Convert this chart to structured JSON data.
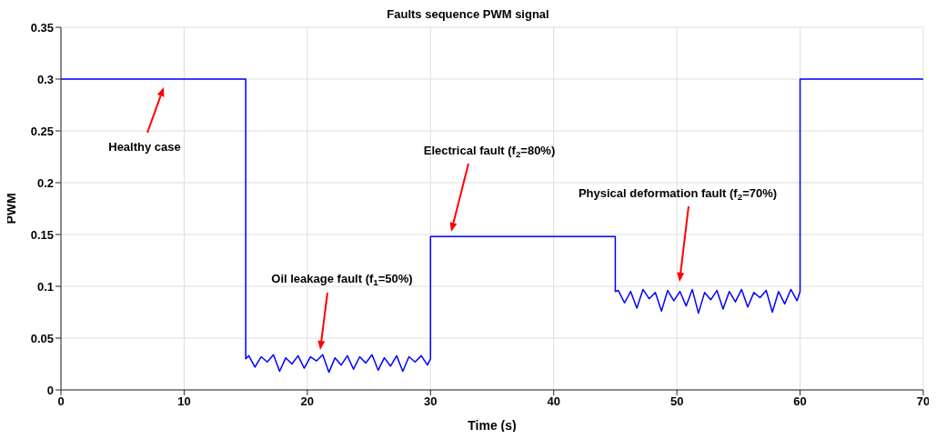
{
  "chart_data": {
    "type": "line",
    "title": "Faults sequence PWM signal",
    "xlabel": "Time (s)",
    "ylabel": "PWM",
    "x": [
      0,
      15,
      15,
      15.25,
      15.75,
      16.25,
      16.75,
      17.25,
      17.75,
      18.25,
      18.75,
      19.25,
      19.75,
      20.25,
      20.75,
      21.25,
      21.75,
      22.25,
      22.75,
      23.25,
      23.75,
      24.25,
      24.75,
      25.25,
      25.75,
      26.25,
      26.75,
      27.25,
      27.75,
      28.25,
      28.75,
      29.25,
      29.75,
      30,
      30,
      45,
      45,
      45.25,
      45.75,
      46.25,
      46.75,
      47.25,
      47.75,
      48.25,
      48.75,
      49.25,
      49.75,
      50.25,
      50.75,
      51.25,
      51.75,
      52.25,
      52.75,
      53.25,
      53.75,
      54.25,
      54.75,
      55.25,
      55.75,
      56.25,
      56.75,
      57.25,
      57.75,
      58.25,
      58.75,
      59.25,
      59.75,
      60,
      60,
      70
    ],
    "series": [
      {
        "color": "#0000ff",
        "values": [
          0.3,
          0.3,
          0.03,
          0.033,
          0.022,
          0.032,
          0.027,
          0.034,
          0.018,
          0.031,
          0.025,
          0.033,
          0.021,
          0.032,
          0.028,
          0.034,
          0.017,
          0.031,
          0.024,
          0.033,
          0.02,
          0.032,
          0.026,
          0.034,
          0.019,
          0.031,
          0.023,
          0.033,
          0.018,
          0.032,
          0.027,
          0.033,
          0.024,
          0.03,
          0.148,
          0.148,
          0.095,
          0.096,
          0.084,
          0.095,
          0.079,
          0.097,
          0.088,
          0.094,
          0.076,
          0.096,
          0.086,
          0.095,
          0.081,
          0.097,
          0.074,
          0.094,
          0.087,
          0.096,
          0.078,
          0.095,
          0.085,
          0.097,
          0.08,
          0.094,
          0.089,
          0.096,
          0.075,
          0.095,
          0.083,
          0.097,
          0.086,
          0.095,
          0.3,
          0.3
        ]
      }
    ],
    "xlim": [
      0,
      70
    ],
    "xticks": [
      0,
      10,
      20,
      30,
      40,
      50,
      60,
      70
    ],
    "ylim": [
      0,
      0.35
    ],
    "yticks": [
      0,
      0.05,
      0.1,
      0.15,
      0.2,
      0.25,
      0.3,
      0.35
    ],
    "grid": true,
    "legend": false,
    "marker": "none",
    "line_style": "solid",
    "annotations": [
      "Healthy case",
      "Oil leakage fault (f$_{1}$=50%)",
      "Electrical fault (f$_{2}$=80%)",
      "Physical deformation fault (f$_{2}$=70%)"
    ]
  }
}
